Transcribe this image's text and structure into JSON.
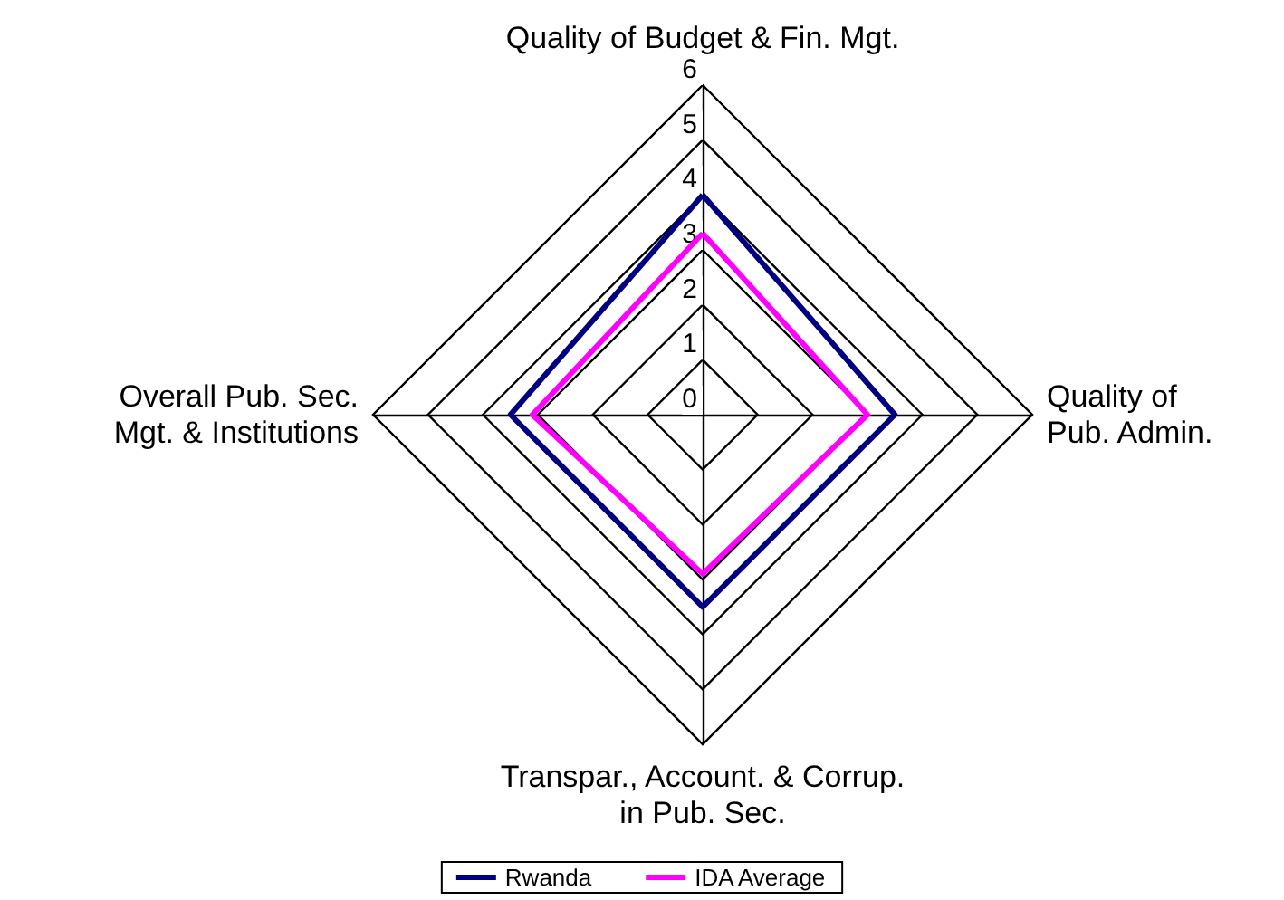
{
  "chart_data": {
    "type": "radar",
    "categories": [
      "Quality of Budget & Fin. Mgt.",
      "Quality of\nPub. Admin.",
      "Transpar., Account. & Corrup.\nin Pub. Sec.",
      "Overall Pub. Sec.\nMgt. & Institutions"
    ],
    "series": [
      {
        "name": "Rwanda",
        "color": "#000080",
        "values": [
          4.0,
          3.5,
          3.5,
          3.5
        ]
      },
      {
        "name": "IDA Average",
        "color": "#ff00ff",
        "values": [
          3.3,
          3.0,
          2.9,
          3.1
        ]
      }
    ],
    "ylim": [
      0,
      6
    ],
    "yticks": [
      0,
      1,
      2,
      3,
      4,
      5,
      6
    ],
    "legend": "bottom",
    "marker": "none"
  }
}
